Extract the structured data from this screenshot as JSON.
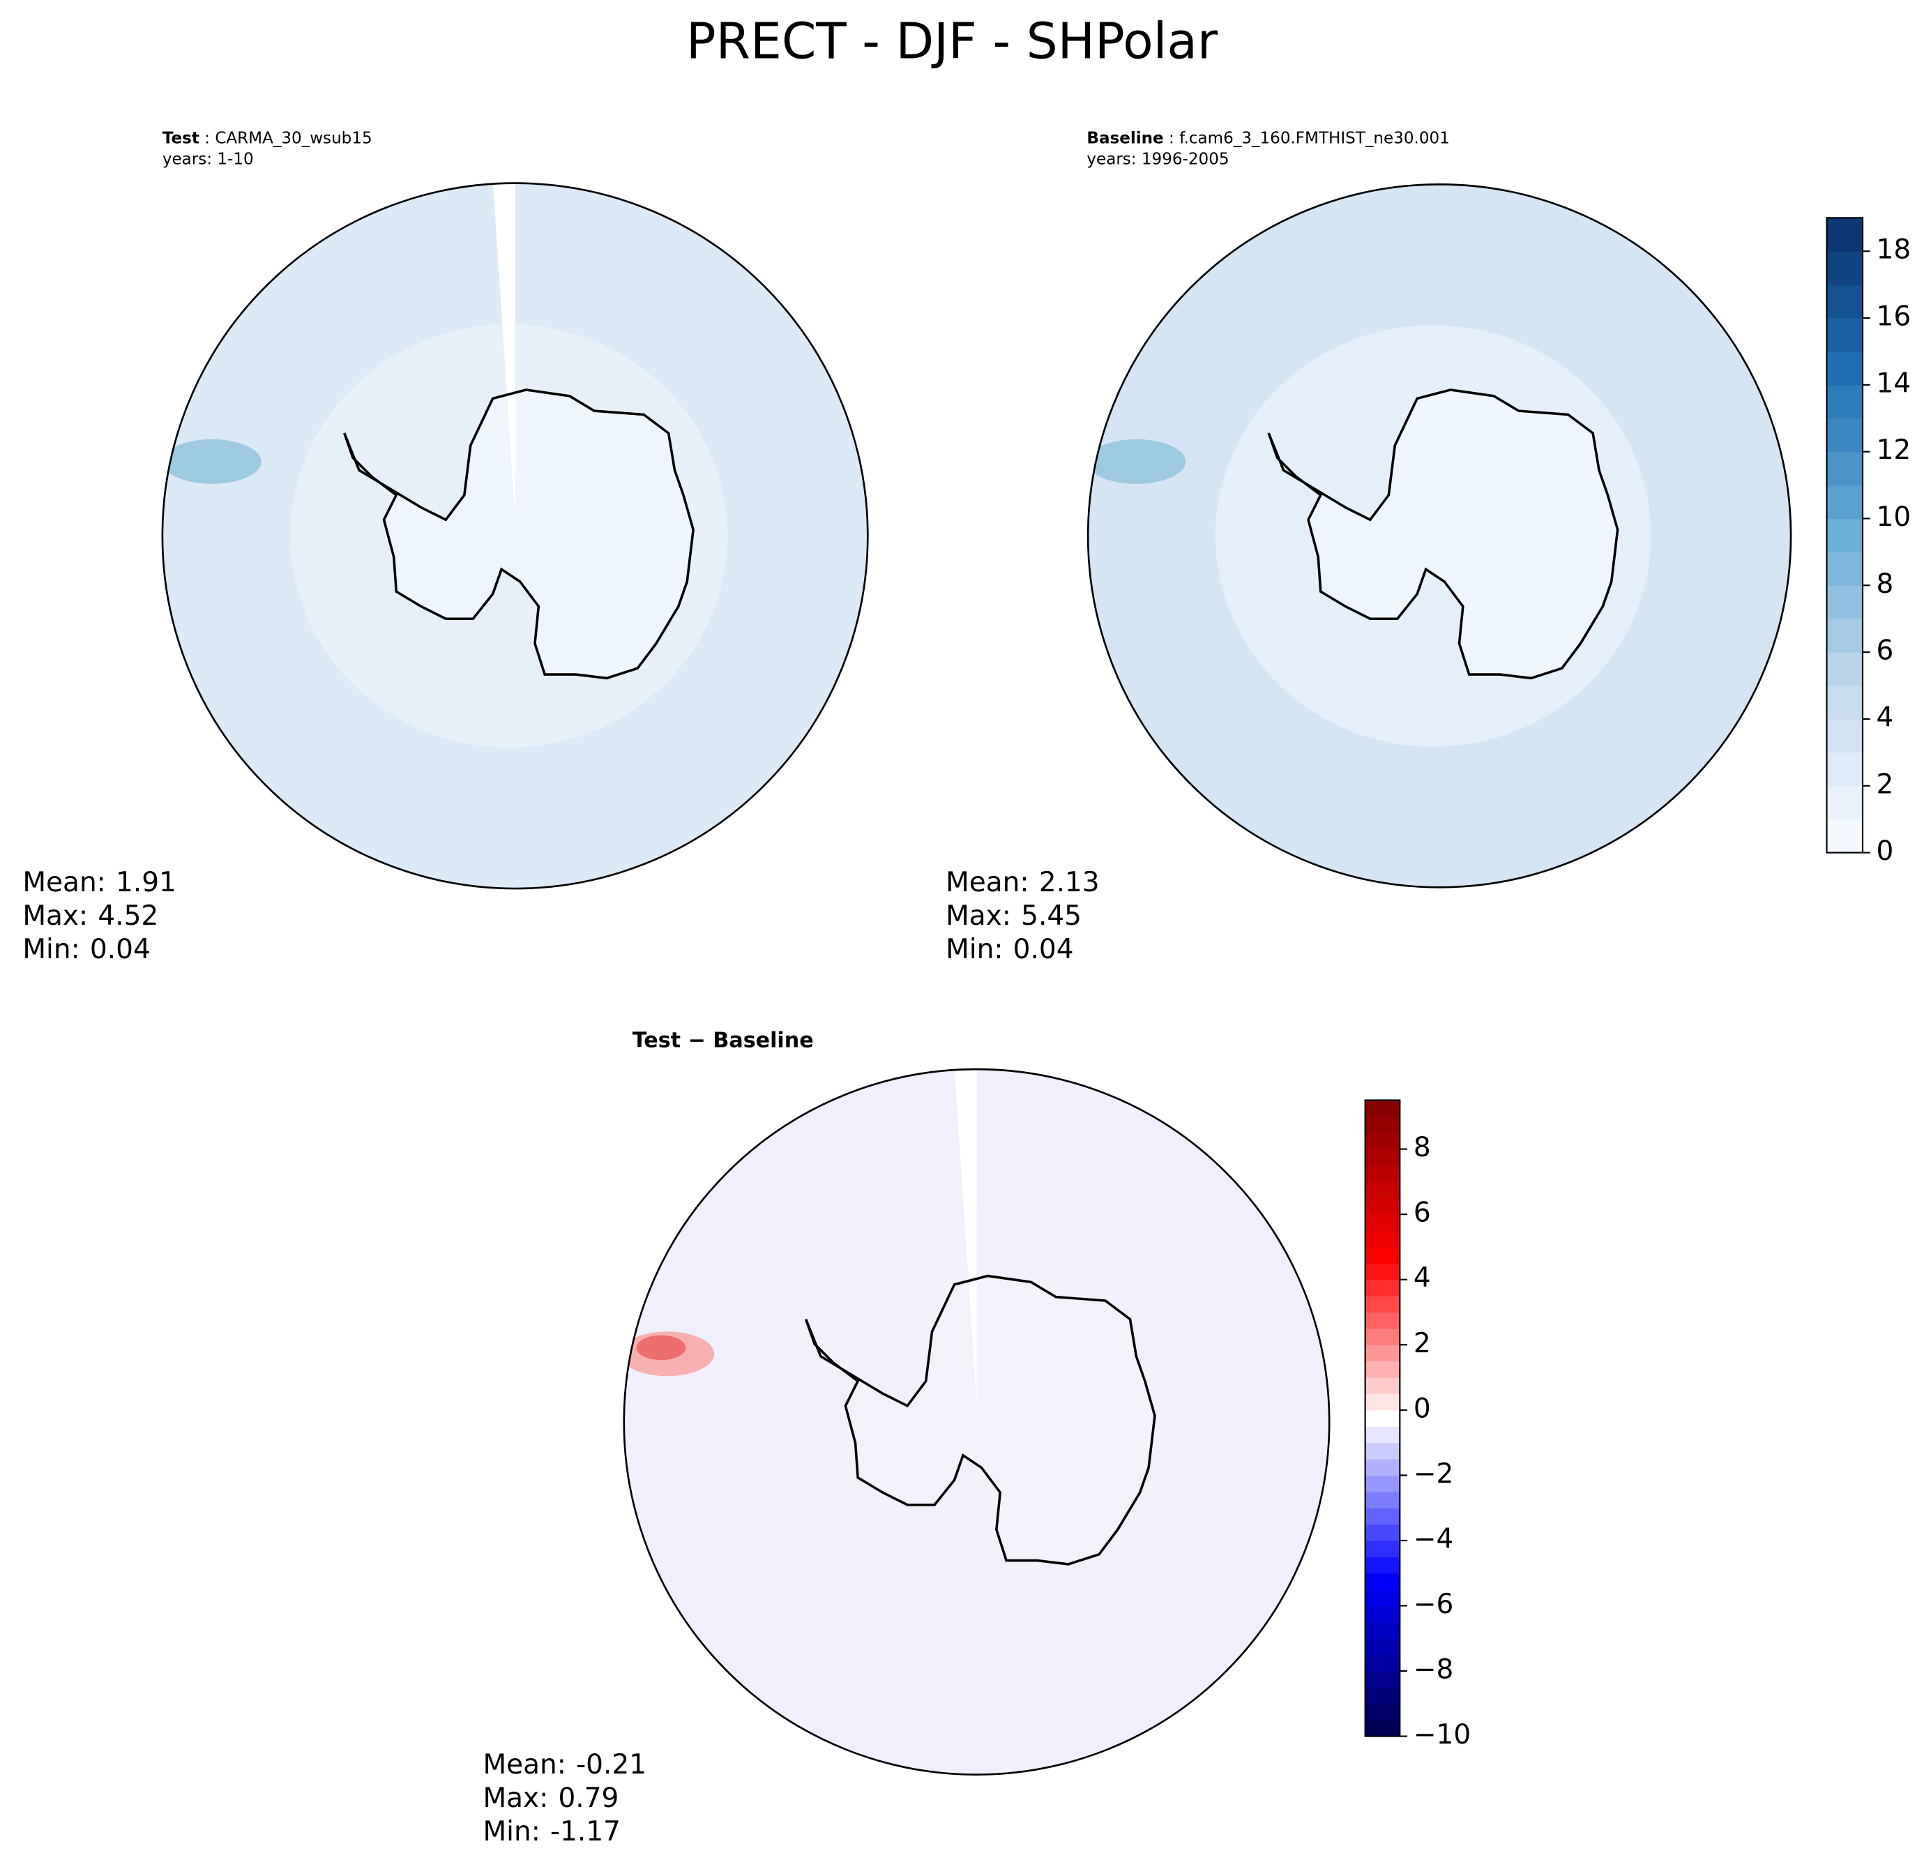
{
  "title": "PRECT - DJF - SHPolar",
  "chart_data": [
    {
      "type": "map",
      "title_bold": "Test",
      "title_rest": " : CARMA_30_wsub15",
      "subtitle": "years: 1-10",
      "field_color": "#dce9f6",
      "land_color": "#eef5fc",
      "stats": [
        {
          "name": "Mean:",
          "value": 1.91
        },
        {
          "name": "Max:",
          "value": 4.52
        },
        {
          "name": "Min:",
          "value": 0.04
        }
      ]
    },
    {
      "type": "map",
      "title_bold": "Baseline",
      "title_rest": " : f.cam6_3_160.FMTHIST_ne30.001",
      "subtitle": "years: 1996-2005",
      "field_color": "#d6e5f4",
      "land_color": "#eef5fc",
      "stats": [
        {
          "name": "Mean:",
          "value": 2.13
        },
        {
          "name": "Max:",
          "value": 5.45
        },
        {
          "name": "Min:",
          "value": 0.04
        }
      ],
      "colorbar": {
        "ylim": [
          0,
          19
        ],
        "yticks": [
          0,
          2,
          4,
          6,
          8,
          10,
          12,
          14,
          16,
          18
        ],
        "colormap": [
          "#f7fbff",
          "#c6dbef",
          "#6baed6",
          "#2171b5",
          "#08306b"
        ]
      }
    },
    {
      "type": "map",
      "title_bold": "Test − Baseline",
      "field_color": "#f0f0fc",
      "land_color": "#f3f1fa",
      "stats": [
        {
          "name": "Mean:",
          "value": -0.21
        },
        {
          "name": "Max:",
          "value": 0.79
        },
        {
          "name": "Min:",
          "value": -1.17
        }
      ],
      "colorbar": {
        "ylim": [
          -10,
          9.5
        ],
        "yticks": [
          {
            "value": -10,
            "label": "−10"
          },
          {
            "value": -8,
            "label": "−8"
          },
          {
            "value": -6,
            "label": "−6"
          },
          {
            "value": -4,
            "label": "−4"
          },
          {
            "value": -2,
            "label": "−2"
          },
          0,
          2,
          4,
          6,
          8
        ],
        "colormap": [
          "#00004c",
          "#0000ff",
          "#ffffff",
          "#ff0000",
          "#7f0000"
        ]
      }
    }
  ]
}
